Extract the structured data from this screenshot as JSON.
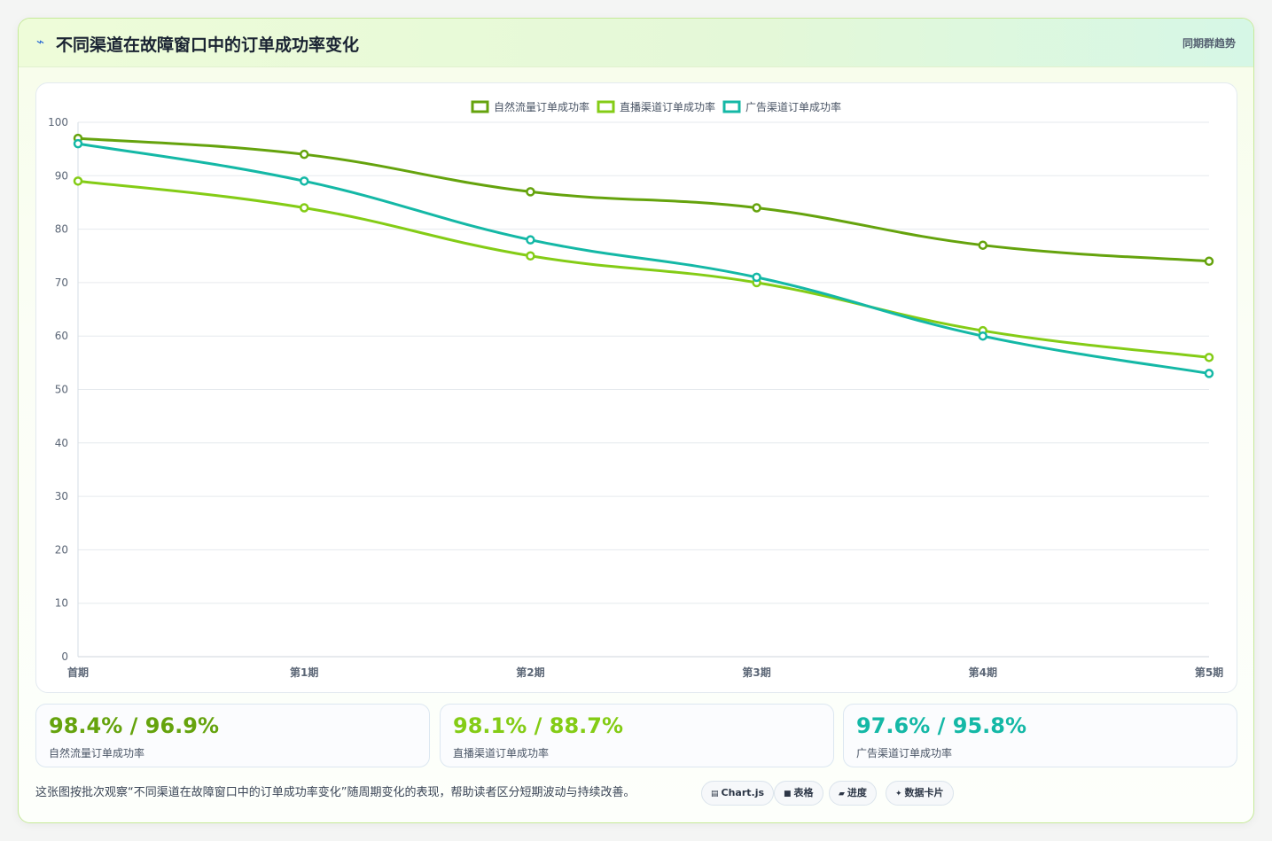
{
  "header": {
    "icon": "lightning-icon",
    "title": "不同渠道在故障窗口中的订单成功率变化",
    "badge": "同期群趋势"
  },
  "chart_data": {
    "type": "line",
    "categories": [
      "首期",
      "第1期",
      "第2期",
      "第3期",
      "第4期",
      "第5期"
    ],
    "series": [
      {
        "name": "自然流量订单成功率",
        "color": "#65a30d",
        "values": [
          97,
          94,
          87,
          84,
          77,
          74
        ]
      },
      {
        "name": "直播渠道订单成功率",
        "color": "#84cc16",
        "values": [
          89,
          84,
          75,
          70,
          61,
          56
        ]
      },
      {
        "name": "广告渠道订单成功率",
        "color": "#14b8a6",
        "values": [
          96,
          89,
          78,
          71,
          60,
          53
        ]
      }
    ],
    "ylim": [
      0,
      100
    ],
    "yticks": [
      0,
      10,
      20,
      30,
      40,
      50,
      60,
      70,
      80,
      90,
      100
    ],
    "grid": true,
    "legend": "top-center"
  },
  "stats": [
    {
      "value": "98.4% / 96.9%",
      "label": "自然流量订单成功率",
      "color": "#65a30d"
    },
    {
      "value": "98.1% / 88.7%",
      "label": "直播渠道订单成功率",
      "color": "#84cc16"
    },
    {
      "value": "97.6% / 95.8%",
      "label": "广告渠道订单成功率",
      "color": "#14b8a6"
    }
  ],
  "footer": {
    "text": "这张图按批次观察“不同渠道在故障窗口中的订单成功率变化”随周期变化的表现，帮助读者区分短期波动与持续改善。",
    "chips": [
      {
        "icon": "▤",
        "label": "Chart.js"
      },
      {
        "icon": "■",
        "label": "表格"
      },
      {
        "icon": "▰",
        "label": "进度"
      },
      {
        "icon": "✦",
        "label": "数据卡片"
      }
    ]
  }
}
